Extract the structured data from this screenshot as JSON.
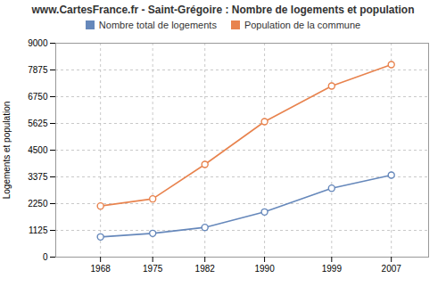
{
  "chart_data": {
    "type": "line",
    "title": "www.CartesFrance.fr - Saint-Grégoire : Nombre de logements et population",
    "y_label": "Logements et population",
    "x": [
      1968,
      1975,
      1982,
      1990,
      1999,
      2007
    ],
    "series": [
      {
        "name": "Nombre total de logements",
        "color": "#6688bb",
        "values": [
          850,
          1000,
          1250,
          1900,
          2900,
          3450
        ]
      },
      {
        "name": "Population de la commune",
        "color": "#e8834e",
        "values": [
          2150,
          2450,
          3900,
          5700,
          7200,
          8100
        ]
      }
    ],
    "xlim": [
      1962,
      2012
    ],
    "xticks": [
      1968,
      1975,
      1982,
      1990,
      1999,
      2007
    ],
    "ylim": [
      0,
      9000
    ],
    "yticks": [
      0,
      1125,
      2250,
      3375,
      4500,
      5625,
      6750,
      7875,
      9000
    ],
    "grid": true,
    "legend": "top",
    "marker": "circle"
  }
}
